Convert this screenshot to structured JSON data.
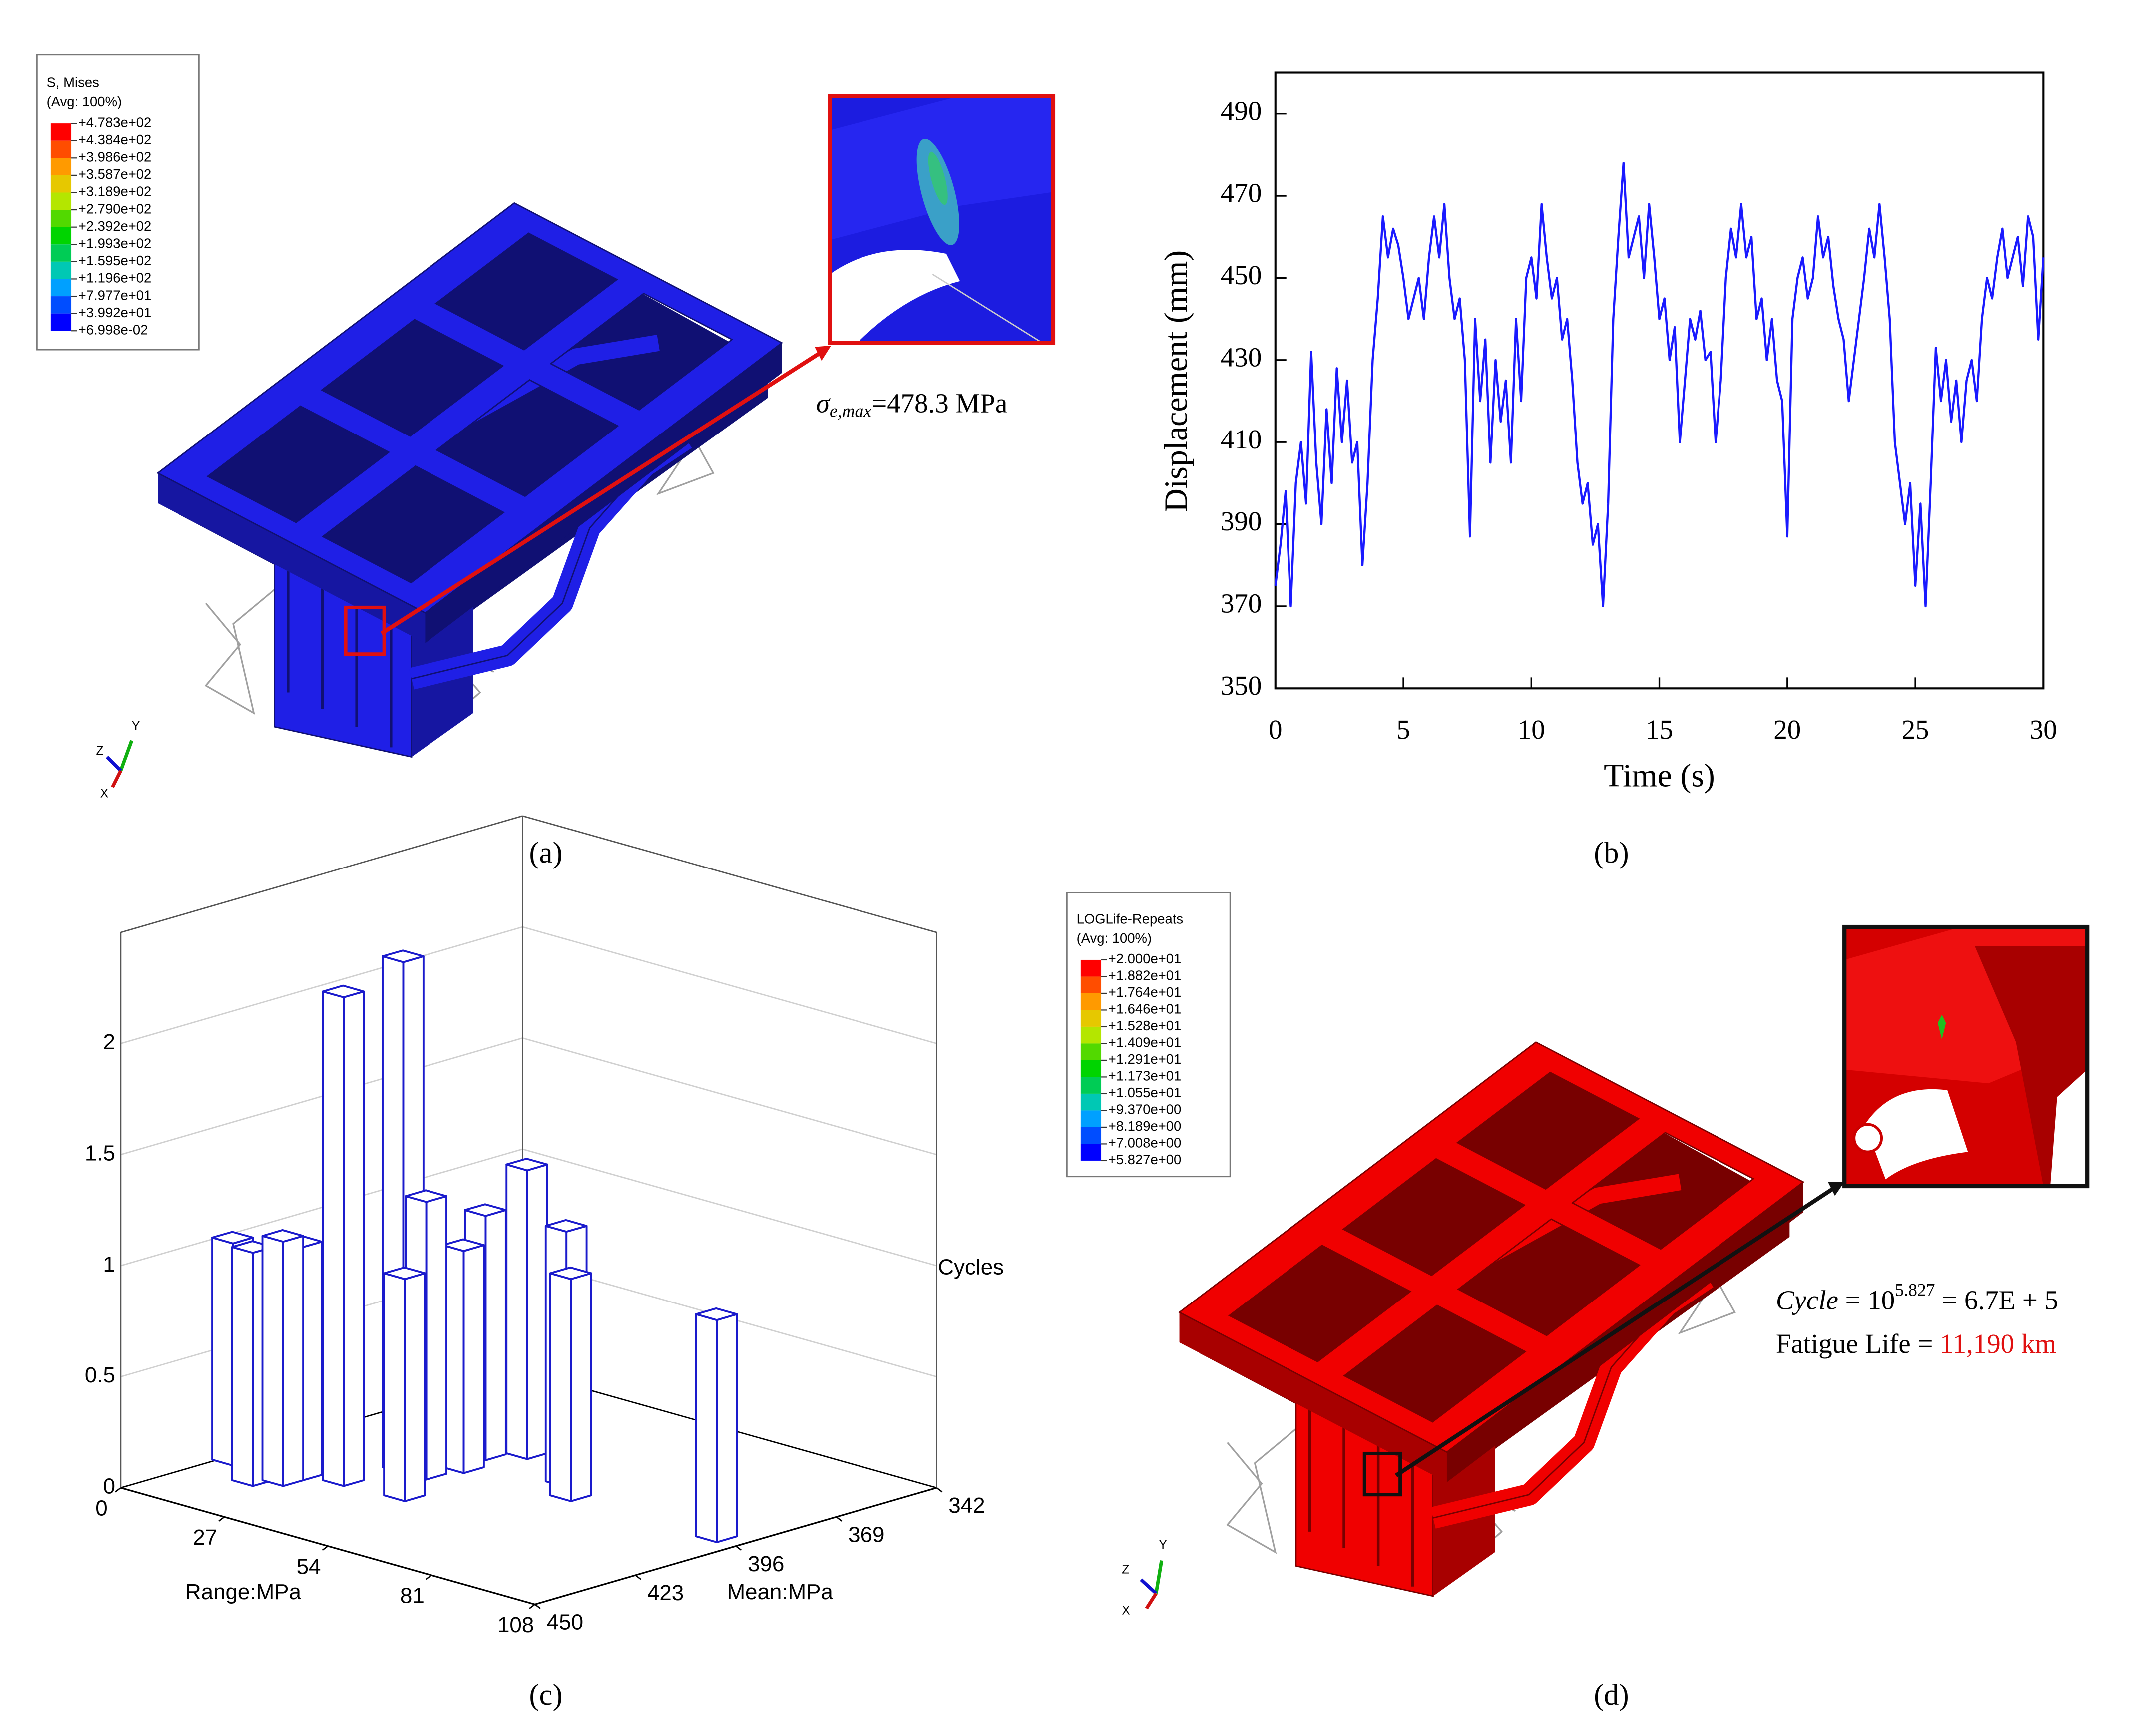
{
  "panel_a": {
    "legend": {
      "title": "S, Mises",
      "subtitle": "(Avg: 100%)",
      "labels": [
        "+4.783e+02",
        "+4.384e+02",
        "+3.986e+02",
        "+3.587e+02",
        "+3.189e+02",
        "+2.790e+02",
        "+2.392e+02",
        "+1.993e+02",
        "+1.595e+02",
        "+1.196e+02",
        "+7.977e+01",
        "+3.992e+01",
        "+6.998e-02"
      ],
      "colors": [
        "#ff0000",
        "#ff4d00",
        "#ff9a00",
        "#e6c800",
        "#b4e600",
        "#52d900",
        "#00d400",
        "#00cc55",
        "#00c8b4",
        "#00a0ff",
        "#004dff",
        "#0000ff"
      ]
    },
    "annotation": {
      "symbol": "σ",
      "subscript": "e,max",
      "text": "=478.3 MPa"
    },
    "triad": {
      "y": "Y",
      "z": "Z",
      "x": "X"
    },
    "color": "#1f1fe6",
    "caption": "(a)"
  },
  "chart_data": [
    {
      "type": "line",
      "caption": "(b)",
      "x_label": "Time (s)",
      "y_label": "Displacement (mm)",
      "xlim": [
        0,
        30
      ],
      "ylim": [
        350,
        500
      ],
      "xticks": [
        0,
        5,
        10,
        15,
        20,
        25,
        30
      ],
      "yticks": [
        350,
        370,
        390,
        410,
        430,
        450,
        470,
        490
      ],
      "color": "#1a1aff",
      "x": [
        0,
        0.2,
        0.4,
        0.6,
        0.8,
        1,
        1.2,
        1.4,
        1.6,
        1.8,
        2,
        2.2,
        2.4,
        2.6,
        2.8,
        3,
        3.2,
        3.4,
        3.6,
        3.8,
        4,
        4.2,
        4.4,
        4.6,
        4.8,
        5,
        5.2,
        5.4,
        5.6,
        5.8,
        6,
        6.2,
        6.4,
        6.6,
        6.8,
        7,
        7.2,
        7.4,
        7.6,
        7.8,
        8,
        8.2,
        8.4,
        8.6,
        8.8,
        9,
        9.2,
        9.4,
        9.6,
        9.8,
        10,
        10.2,
        10.4,
        10.6,
        10.8,
        11,
        11.2,
        11.4,
        11.6,
        11.8,
        12,
        12.2,
        12.4,
        12.6,
        12.8,
        13,
        13.2,
        13.4,
        13.6,
        13.8,
        14,
        14.2,
        14.4,
        14.6,
        14.8,
        15,
        15.2,
        15.4,
        15.6,
        15.8,
        16,
        16.2,
        16.4,
        16.6,
        16.8,
        17,
        17.2,
        17.4,
        17.6,
        17.8,
        18,
        18.2,
        18.4,
        18.6,
        18.8,
        19,
        19.2,
        19.4,
        19.6,
        19.8,
        20,
        20.2,
        20.4,
        20.6,
        20.8,
        21,
        21.2,
        21.4,
        21.6,
        21.8,
        22,
        22.2,
        22.4,
        22.6,
        22.8,
        23,
        23.2,
        23.4,
        23.6,
        23.8,
        24,
        24.2,
        24.4,
        24.6,
        24.8,
        25,
        25.2,
        25.4,
        25.6,
        25.8,
        26,
        26.2,
        26.4,
        26.6,
        26.8,
        27,
        27.2,
        27.4,
        27.6,
        27.8,
        28,
        28.2,
        28.4,
        28.6,
        28.8,
        29,
        29.2,
        29.4,
        29.6,
        29.8,
        30
      ],
      "values": [
        375,
        385,
        398,
        370,
        400,
        410,
        395,
        432,
        405,
        390,
        418,
        400,
        428,
        410,
        425,
        405,
        410,
        380,
        400,
        430,
        445,
        465,
        455,
        462,
        458,
        450,
        440,
        445,
        450,
        440,
        455,
        465,
        455,
        468,
        450,
        440,
        445,
        430,
        387,
        440,
        420,
        435,
        405,
        430,
        415,
        425,
        405,
        440,
        420,
        450,
        455,
        445,
        468,
        455,
        445,
        450,
        435,
        440,
        425,
        405,
        395,
        400,
        385,
        390,
        370,
        395,
        440,
        460,
        478,
        455,
        460,
        465,
        450,
        468,
        455,
        440,
        445,
        430,
        438,
        410,
        425,
        440,
        435,
        442,
        430,
        432,
        410,
        425,
        450,
        462,
        455,
        468,
        455,
        460,
        440,
        445,
        430,
        440,
        425,
        420,
        387,
        440,
        450,
        455,
        445,
        450,
        465,
        455,
        460,
        448,
        440,
        435,
        420,
        430,
        440,
        450,
        462,
        455,
        468,
        455,
        440,
        410,
        400,
        390,
        400,
        375,
        395,
        370,
        400,
        433,
        420,
        430,
        415,
        425,
        410,
        425,
        430,
        420,
        440,
        450,
        445,
        455,
        462,
        450,
        455,
        460,
        448,
        465,
        460,
        435,
        455
      ]
    },
    {
      "type": "bar3d",
      "caption": "(c)",
      "x_label": "Range:MPa",
      "y_label": "Mean:MPa",
      "z_label": "Cycles",
      "xlim": [
        0,
        108
      ],
      "xticks": [
        0,
        27,
        54,
        81,
        108
      ],
      "ylim": [
        342,
        450
      ],
      "yticks": [
        342,
        369,
        396,
        423,
        450
      ],
      "zlim": [
        0,
        2.5
      ],
      "zticks": [
        0,
        0.5,
        1,
        1.5,
        2
      ],
      "color": "#1a1acc",
      "bars": [
        {
          "range": 2,
          "mean": 422,
          "value": 1.0
        },
        {
          "range": 14,
          "mean": 429,
          "value": 1.05
        },
        {
          "range": 18,
          "mean": 425,
          "value": 1.1
        },
        {
          "range": 18,
          "mean": 420,
          "value": 1.05
        },
        {
          "range": 26,
          "mean": 417,
          "value": 2.2
        },
        {
          "range": 28,
          "mean": 403,
          "value": 2.3
        },
        {
          "range": 41,
          "mean": 416,
          "value": 1.0
        },
        {
          "range": 34,
          "mean": 403,
          "value": 1.25
        },
        {
          "range": 36,
          "mean": 395,
          "value": 1.0
        },
        {
          "range": 33,
          "mean": 386,
          "value": 1.1
        },
        {
          "range": 38,
          "mean": 380,
          "value": 1.3
        },
        {
          "range": 63,
          "mean": 394,
          "value": 1.0
        },
        {
          "range": 56,
          "mean": 388,
          "value": 1.15
        },
        {
          "range": 101,
          "mean": 394,
          "value": 1.0
        }
      ]
    }
  ],
  "panel_d": {
    "legend": {
      "title": "LOGLife-Repeats",
      "subtitle": "(Avg: 100%)",
      "labels": [
        "+2.000e+01",
        "+1.882e+01",
        "+1.764e+01",
        "+1.646e+01",
        "+1.528e+01",
        "+1.409e+01",
        "+1.291e+01",
        "+1.173e+01",
        "+1.055e+01",
        "+9.370e+00",
        "+8.189e+00",
        "+7.008e+00",
        "+5.827e+00"
      ],
      "colors": [
        "#ff0000",
        "#ff4d00",
        "#ff9a00",
        "#e6c800",
        "#b4e600",
        "#52d900",
        "#00d400",
        "#00cc55",
        "#00c8b4",
        "#00a0ff",
        "#004dff",
        "#0000ff"
      ]
    },
    "annotation": {
      "cycle_label": "Cycle",
      "cycle_eq": "= 10",
      "cycle_exp": "5.827",
      "cycle_result": "= 6.7E + 5",
      "life_label": "Fatigue Life =",
      "life_value": "11,190 km"
    },
    "triad": {
      "y": "Y",
      "z": "Z",
      "x": "X"
    },
    "color": "#f00000",
    "caption": "(d)"
  }
}
